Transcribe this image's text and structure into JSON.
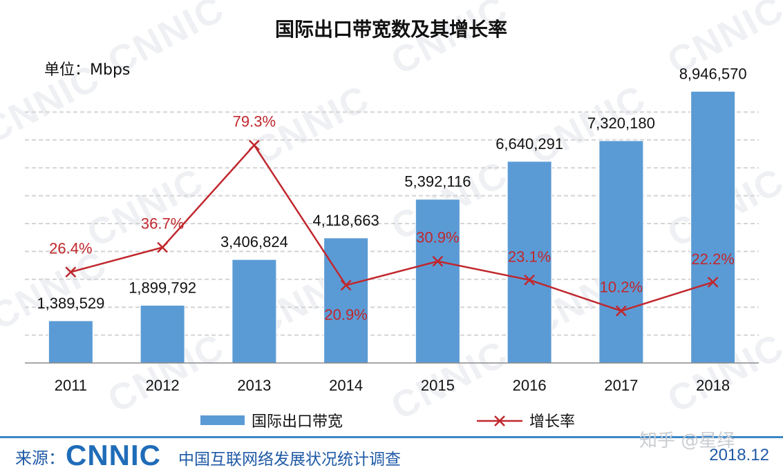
{
  "chart_data": {
    "type": "bar",
    "title": "国际出口带宽数及其增长率",
    "unit_label": "单位：Mbps",
    "categories": [
      "2011",
      "2012",
      "2013",
      "2014",
      "2015",
      "2016",
      "2017",
      "2018"
    ],
    "series": [
      {
        "name": "国际出口带宽",
        "type": "bar",
        "color": "#5b9bd5",
        "values": [
          1389529,
          1899792,
          3406824,
          4118663,
          5392116,
          6640291,
          7320180,
          8946570
        ],
        "labels": [
          "1,389,529",
          "1,899,792",
          "3,406,824",
          "4,118,663",
          "5,392,116",
          "6,640,291",
          "7,320,180",
          "8,946,570"
        ]
      },
      {
        "name": "增长率",
        "type": "line",
        "color": "#c0272d",
        "values": [
          26.4,
          36.7,
          79.3,
          20.9,
          30.9,
          23.1,
          10.2,
          22.2
        ],
        "labels": [
          "26.4%",
          "36.7%",
          "79.3%",
          "20.9%",
          "30.9%",
          "23.1%",
          "10.2%",
          "22.2%"
        ]
      }
    ],
    "ylim_bar": [
      0,
      10000000
    ],
    "ylim_line": [
      0,
      100
    ],
    "grid": true,
    "legend_position": "bottom"
  },
  "watermark": "CNNIC",
  "footer": {
    "source_label": "来源：",
    "logo_text": "CNNIC",
    "organization": "中国互联网络发展状况统计调查",
    "credit": "知乎 @星绎",
    "date": "2018.12"
  }
}
